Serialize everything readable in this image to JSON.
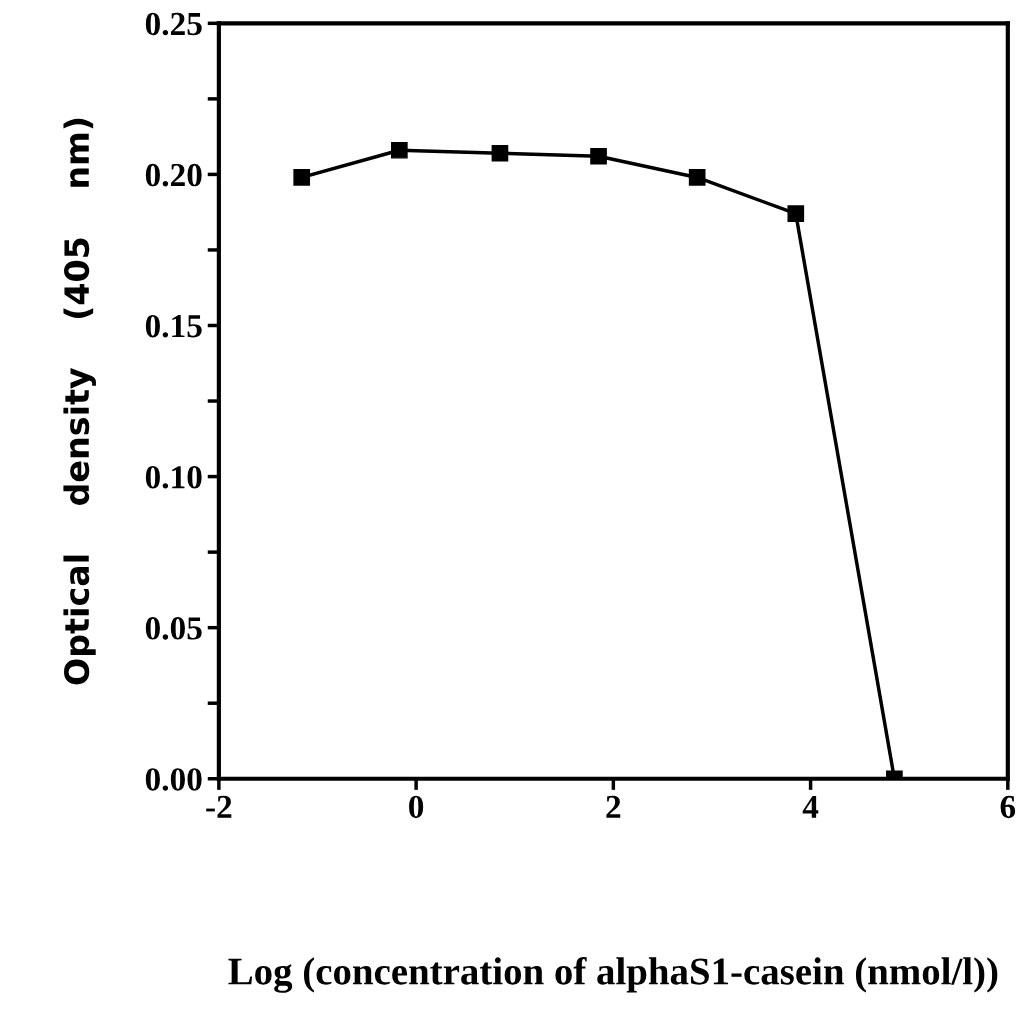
{
  "chart_data": {
    "type": "line",
    "xlabel": "Log (concentration of alphaS1-casein (nmol/l))",
    "ylabel": "Optical    density    (405    nm)",
    "x": [
      -1.16,
      -0.17,
      0.85,
      1.85,
      2.85,
      3.85,
      4.85
    ],
    "series": [
      {
        "color": "#000000",
        "values": [
          0.199,
          0.208,
          0.207,
          0.206,
          0.199,
          0.187,
          0.0
        ]
      }
    ],
    "xlim": [
      -2,
      6
    ],
    "xticks": [
      -2,
      0,
      2,
      4,
      6
    ],
    "ylim": [
      0,
      0.25
    ],
    "yticks": [
      {
        "value": 0,
        "label": "0.00"
      },
      {
        "value": 0.05,
        "label": "0.05"
      },
      {
        "value": 0.1,
        "label": "0.10"
      },
      {
        "value": 0.15,
        "label": "0.15"
      },
      {
        "value": 0.2,
        "label": "0.20"
      },
      {
        "value": 0.25,
        "label": "0.25"
      },
      {
        "value": 0.025,
        "label": null
      },
      {
        "value": 0.075,
        "label": null
      },
      {
        "value": 0.125,
        "label": null
      },
      {
        "value": 0.175,
        "label": null
      },
      {
        "value": 0.225,
        "label": null
      }
    ],
    "marker": "square",
    "line_style": "solid",
    "grid": false,
    "legend": false
  }
}
